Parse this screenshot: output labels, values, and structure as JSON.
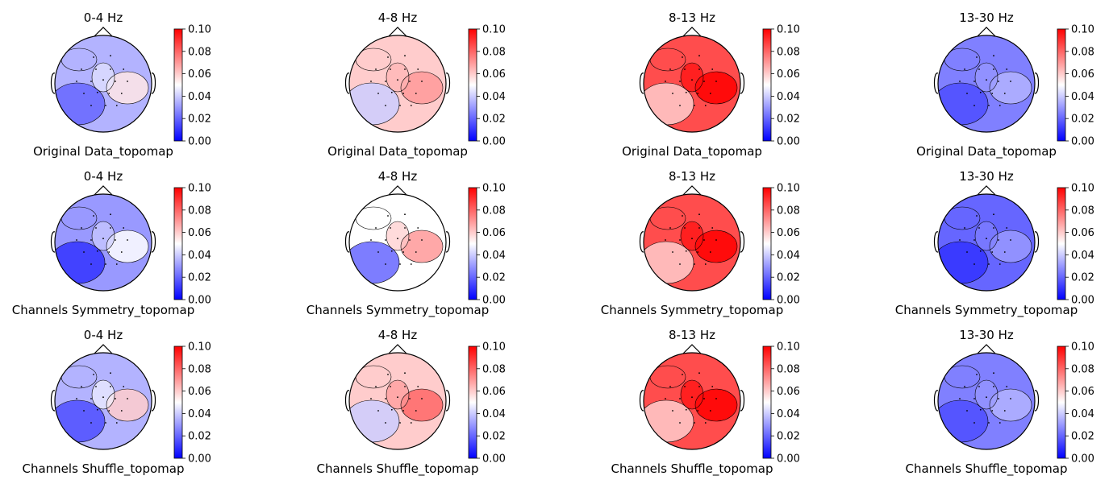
{
  "chart_data": {
    "type": "heatmap",
    "colormap": "bwr",
    "colors": {
      "low": "#0000ff",
      "mid": "#ffffff",
      "high": "#ff0000",
      "outline": "#000000"
    },
    "colorbar": {
      "ticks": [
        "0.00",
        "0.02",
        "0.04",
        "0.06",
        "0.08",
        "0.10"
      ],
      "min": 0.0,
      "max": 0.1
    },
    "bands": [
      "0-4 Hz",
      "4-8 Hz",
      "8-13 Hz",
      "13-30 Hz"
    ],
    "rows": [
      "Original Data_topomap",
      "Channels Symmetry_topomap",
      "Channels Shuffle_topomap"
    ],
    "level_grid": [
      [
        [
          0.035,
          0.02,
          0.055
        ],
        [
          0.06,
          0.04,
          0.07
        ],
        [
          0.085,
          0.06,
          0.11
        ],
        [
          0.025,
          0.015,
          0.035
        ]
      ],
      [
        [
          0.03,
          0.01,
          0.05
        ],
        [
          0.05,
          0.02,
          0.07
        ],
        [
          0.085,
          0.06,
          0.11
        ],
        [
          0.02,
          0.01,
          0.03
        ]
      ],
      [
        [
          0.035,
          0.015,
          0.06
        ],
        [
          0.06,
          0.04,
          0.08
        ],
        [
          0.085,
          0.06,
          0.11
        ],
        [
          0.025,
          0.015,
          0.035
        ]
      ]
    ]
  }
}
